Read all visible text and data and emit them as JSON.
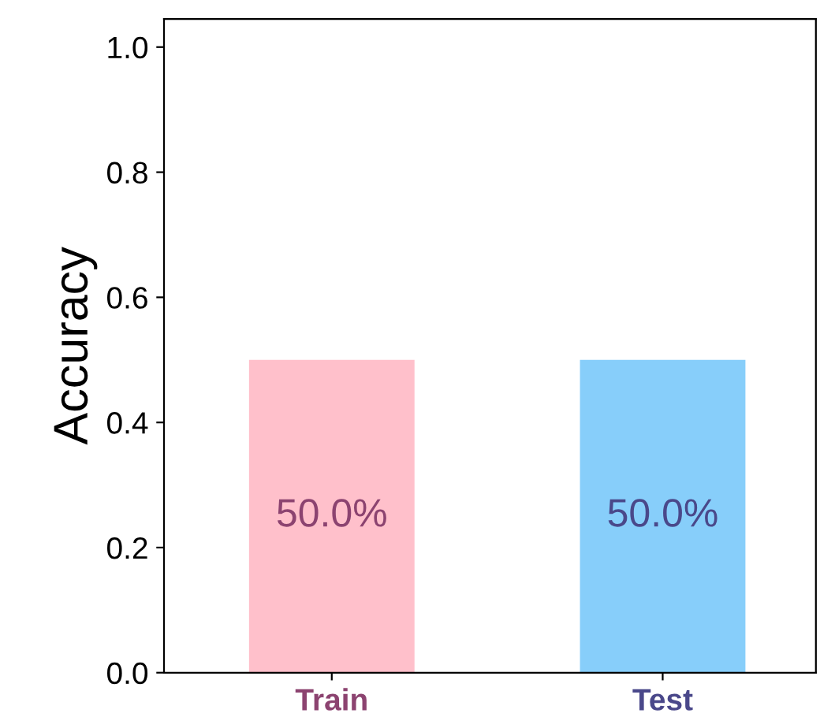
{
  "chart_data": {
    "type": "bar",
    "ylabel": "Accuracy",
    "categories": [
      "Train",
      "Test"
    ],
    "values": [
      0.5,
      0.5
    ],
    "colors": [
      "#ffc0cb",
      "#87cefa"
    ],
    "value_labels": [
      "50.0%",
      "50.0%"
    ],
    "ylim": [
      0,
      1.045
    ],
    "yticks": [
      {
        "value": 0,
        "label": "0.0"
      },
      {
        "value": 0.2,
        "label": "0.2"
      },
      {
        "value": 0.4,
        "label": "0.4"
      },
      {
        "value": 0.6,
        "label": "0.6"
      },
      {
        "value": 0.8,
        "label": "0.8"
      },
      {
        "value": 1.0,
        "label": "1.0"
      }
    ],
    "grid": false,
    "legend": false
  }
}
